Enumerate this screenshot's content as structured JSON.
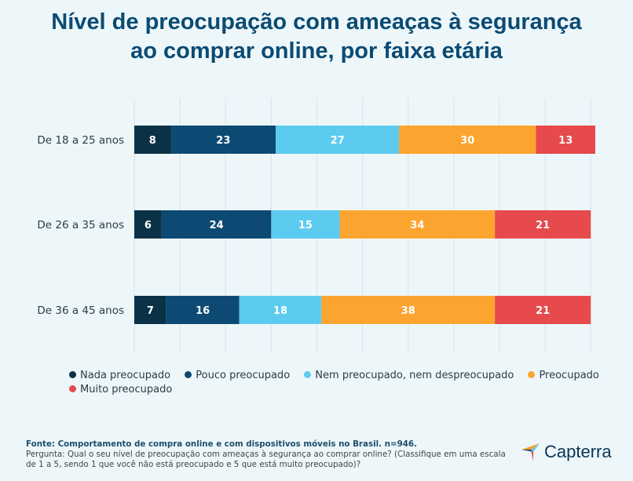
{
  "title_line1": "Nível de preocupação com ameaças à segurança",
  "title_line2": "ao comprar online, por faixa etária",
  "chart_data": {
    "type": "bar",
    "orientation": "horizontal",
    "stacked": true,
    "title": "Nível de preocupação com ameaças à segurança ao comprar online, por faixa etária",
    "categories": [
      "De 18 a 25 anos",
      "De 26 a 35 anos",
      "De 36 a 45 anos"
    ],
    "series": [
      {
        "name": "Nada preocupado",
        "color": "#0b3147",
        "values": [
          8,
          6,
          7
        ]
      },
      {
        "name": "Pouco preocupado",
        "color": "#0d4a73",
        "values": [
          23,
          24,
          16
        ]
      },
      {
        "name": "Nem preocupado, nem despreocupado",
        "color": "#5ccbf0",
        "values": [
          27,
          15,
          18
        ]
      },
      {
        "name": "Preocupado",
        "color": "#fca430",
        "values": [
          30,
          34,
          38
        ]
      },
      {
        "name": "Muito preocupado",
        "color": "#e64a4d",
        "values": [
          13,
          21,
          21
        ]
      }
    ],
    "xlim": [
      0,
      101
    ],
    "grid": true,
    "legend_position": "bottom"
  },
  "legend": {
    "row1": [
      "Nada preocupado",
      "Pouco preocupado",
      "Nem preocupado, nem despreocupado",
      "Preocupado"
    ],
    "row2": [
      "Muito preocupado"
    ]
  },
  "footer": {
    "source": "Fonte:  Comportamento de compra online e com dispositivos móveis no Brasil. n=946.",
    "question_line1": "Pergunta: Qual o seu nível de preocupação com ameaças à segurança ao comprar online? (Classifique em uma escala",
    "question_line2": "de 1 a 5, sendo 1 que você não está preocupado e 5 que está muito preocupado)?"
  },
  "logo": {
    "text": "Capterra",
    "icon": "capterra-arrow-icon"
  },
  "colors": {
    "title": "#0b4b73",
    "background": "#edf7fa"
  }
}
